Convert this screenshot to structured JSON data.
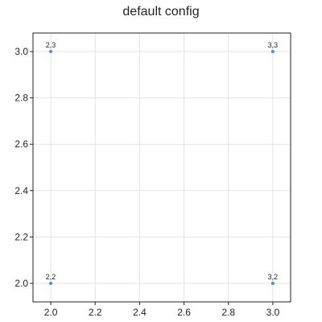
{
  "chart_data": {
    "type": "scatter",
    "title": "default config",
    "xlabel": "",
    "ylabel": "",
    "xlim": [
      1.92,
      3.08
    ],
    "ylim": [
      1.92,
      3.08
    ],
    "xticks": [
      2.0,
      2.2,
      2.4,
      2.6,
      2.8,
      3.0
    ],
    "yticks": [
      2.0,
      2.2,
      2.4,
      2.6,
      2.8,
      3.0
    ],
    "grid": true,
    "series": [
      {
        "color": "#4a90d9",
        "points": [
          {
            "x": 2,
            "y": 3,
            "label": "2,3"
          },
          {
            "x": 3,
            "y": 3,
            "label": "3,3"
          },
          {
            "x": 2,
            "y": 2,
            "label": "2,2"
          },
          {
            "x": 3,
            "y": 2,
            "label": "3,2"
          }
        ]
      }
    ]
  }
}
